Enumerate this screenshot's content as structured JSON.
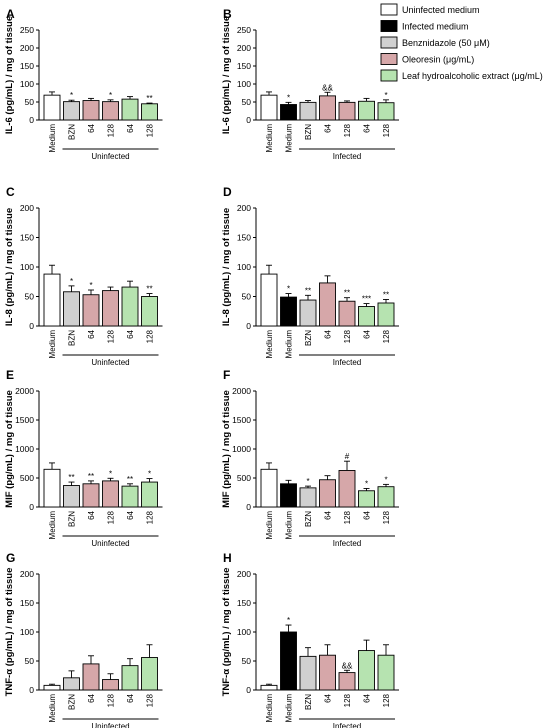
{
  "colors": {
    "uninfected": "#ffffff",
    "infected": "#000000",
    "bzn": "#d0d0d0",
    "oleoresin": "#d6a7a9",
    "leaf": "#b6e3b0"
  },
  "legend": {
    "items": [
      {
        "label": "Uninfected medium",
        "color_key": "uninfected"
      },
      {
        "label": "Infected medium",
        "color_key": "infected"
      },
      {
        "label": "Benznidazole (50 μM)",
        "color_key": "bzn"
      },
      {
        "label": "Oleoresin (μg/mL)",
        "color_key": "oleoresin"
      },
      {
        "label": "Leaf hydroalcoholic extract (μg/mL)",
        "color_key": "leaf"
      }
    ]
  },
  "chart_data": [
    {
      "panel": "A",
      "type": "bar",
      "ylabel": "IL-6 (pg/mL) / mg of tissue",
      "ylim": [
        0,
        250
      ],
      "yticks": [
        0,
        50,
        100,
        150,
        200,
        250
      ],
      "group_label": "Uninfected",
      "categories": [
        "Medium",
        "BZN",
        "64",
        "128",
        "64",
        "128"
      ],
      "color_keys": [
        "uninfected",
        "bzn",
        "oleoresin",
        "oleoresin",
        "leaf",
        "leaf"
      ],
      "values": [
        69,
        51,
        54,
        51,
        58,
        45
      ],
      "errors": [
        9,
        4,
        6,
        5,
        7,
        2
      ],
      "annotations": [
        "",
        "*",
        "",
        "*",
        "",
        "**"
      ]
    },
    {
      "panel": "B",
      "type": "bar",
      "ylabel": "IL-6 (pg/mL) / mg of tissue",
      "ylim": [
        0,
        250
      ],
      "yticks": [
        0,
        50,
        100,
        150,
        200,
        250
      ],
      "group_label": "Infected",
      "categories": [
        "Medium",
        "Medium",
        "BZN",
        "64",
        "128",
        "64",
        "128"
      ],
      "color_keys": [
        "uninfected",
        "infected",
        "bzn",
        "oleoresin",
        "oleoresin",
        "leaf",
        "leaf"
      ],
      "values": [
        69,
        43,
        49,
        67,
        49,
        52,
        48
      ],
      "errors": [
        9,
        6,
        5,
        10,
        4,
        8,
        8
      ],
      "annotations": [
        "",
        "*",
        "",
        "&&",
        "",
        "",
        "*"
      ]
    },
    {
      "panel": "C",
      "type": "bar",
      "ylabel": "IL-8 (pg/mL) / mg of tissue",
      "ylim": [
        0,
        200
      ],
      "yticks": [
        0,
        50,
        100,
        150,
        200
      ],
      "group_label": "Uninfected",
      "categories": [
        "Medium",
        "BZN",
        "64",
        "128",
        "64",
        "128"
      ],
      "color_keys": [
        "uninfected",
        "bzn",
        "oleoresin",
        "oleoresin",
        "leaf",
        "leaf"
      ],
      "values": [
        88,
        58,
        53,
        60,
        66,
        50
      ],
      "errors": [
        15,
        10,
        8,
        6,
        10,
        5
      ],
      "annotations": [
        "",
        "*",
        "*",
        "",
        "",
        "**"
      ]
    },
    {
      "panel": "D",
      "type": "bar",
      "ylabel": "IL-8 (pg/mL) / mg of tissue",
      "ylim": [
        0,
        200
      ],
      "yticks": [
        0,
        50,
        100,
        150,
        200
      ],
      "group_label": "Infected",
      "categories": [
        "Medium",
        "Medium",
        "BZN",
        "64",
        "128",
        "64",
        "128"
      ],
      "color_keys": [
        "uninfected",
        "infected",
        "bzn",
        "oleoresin",
        "oleoresin",
        "leaf",
        "leaf"
      ],
      "values": [
        88,
        49,
        44,
        73,
        42,
        33,
        39
      ],
      "errors": [
        15,
        6,
        8,
        12,
        6,
        5,
        6
      ],
      "annotations": [
        "",
        "*",
        "**",
        "",
        "**",
        "***",
        "**"
      ]
    },
    {
      "panel": "E",
      "type": "bar",
      "ylabel": "MIF (pg/mL) / mg of tissue",
      "ylim": [
        0,
        2000
      ],
      "yticks": [
        0,
        500,
        1000,
        1500,
        2000
      ],
      "group_label": "Uninfected",
      "categories": [
        "Medium",
        "BZN",
        "64",
        "128",
        "64",
        "128"
      ],
      "color_keys": [
        "uninfected",
        "bzn",
        "oleoresin",
        "oleoresin",
        "leaf",
        "leaf"
      ],
      "values": [
        650,
        370,
        400,
        450,
        360,
        430
      ],
      "errors": [
        110,
        60,
        50,
        45,
        40,
        60
      ],
      "annotations": [
        "",
        "**",
        "**",
        "*",
        "**",
        "*"
      ]
    },
    {
      "panel": "F",
      "type": "bar",
      "ylabel": "MIF (pg/mL) / mg of tissue",
      "ylim": [
        0,
        2000
      ],
      "yticks": [
        0,
        500,
        1000,
        1500,
        2000
      ],
      "group_label": "Infected",
      "categories": [
        "Medium",
        "Medium",
        "BZN",
        "64",
        "128",
        "64",
        "128"
      ],
      "color_keys": [
        "uninfected",
        "infected",
        "bzn",
        "oleoresin",
        "oleoresin",
        "leaf",
        "leaf"
      ],
      "values": [
        650,
        400,
        330,
        470,
        630,
        280,
        350
      ],
      "errors": [
        110,
        60,
        30,
        70,
        160,
        40,
        40
      ],
      "annotations": [
        "",
        "",
        "*",
        "",
        "#",
        "*",
        "*"
      ]
    },
    {
      "panel": "G",
      "type": "bar",
      "ylabel": "TNF-α (pg/mL) / mg of tissue",
      "ylim": [
        0,
        200
      ],
      "yticks": [
        0,
        50,
        100,
        150,
        200
      ],
      "group_label": "Uninfected",
      "categories": [
        "Medium",
        "BZN",
        "64",
        "128",
        "64",
        "128"
      ],
      "color_keys": [
        "uninfected",
        "bzn",
        "oleoresin",
        "oleoresin",
        "leaf",
        "leaf"
      ],
      "values": [
        8,
        21,
        45,
        18,
        42,
        56
      ],
      "errors": [
        2,
        12,
        14,
        10,
        12,
        22
      ],
      "annotations": [
        "",
        "",
        "",
        "",
        "",
        ""
      ]
    },
    {
      "panel": "H",
      "type": "bar",
      "ylabel": "TNF-α (pg/mL) / mg of tissue",
      "ylim": [
        0,
        200
      ],
      "yticks": [
        0,
        50,
        100,
        150,
        200
      ],
      "group_label": "Infected",
      "categories": [
        "Medium",
        "Medium",
        "BZN",
        "64",
        "128",
        "64",
        "128"
      ],
      "color_keys": [
        "uninfected",
        "infected",
        "bzn",
        "oleoresin",
        "oleoresin",
        "leaf",
        "leaf"
      ],
      "values": [
        8,
        100,
        58,
        60,
        30,
        68,
        60
      ],
      "errors": [
        2,
        12,
        15,
        18,
        4,
        18,
        18
      ],
      "annotations": [
        "",
        "*",
        "",
        "",
        "&&",
        "",
        ""
      ]
    }
  ]
}
